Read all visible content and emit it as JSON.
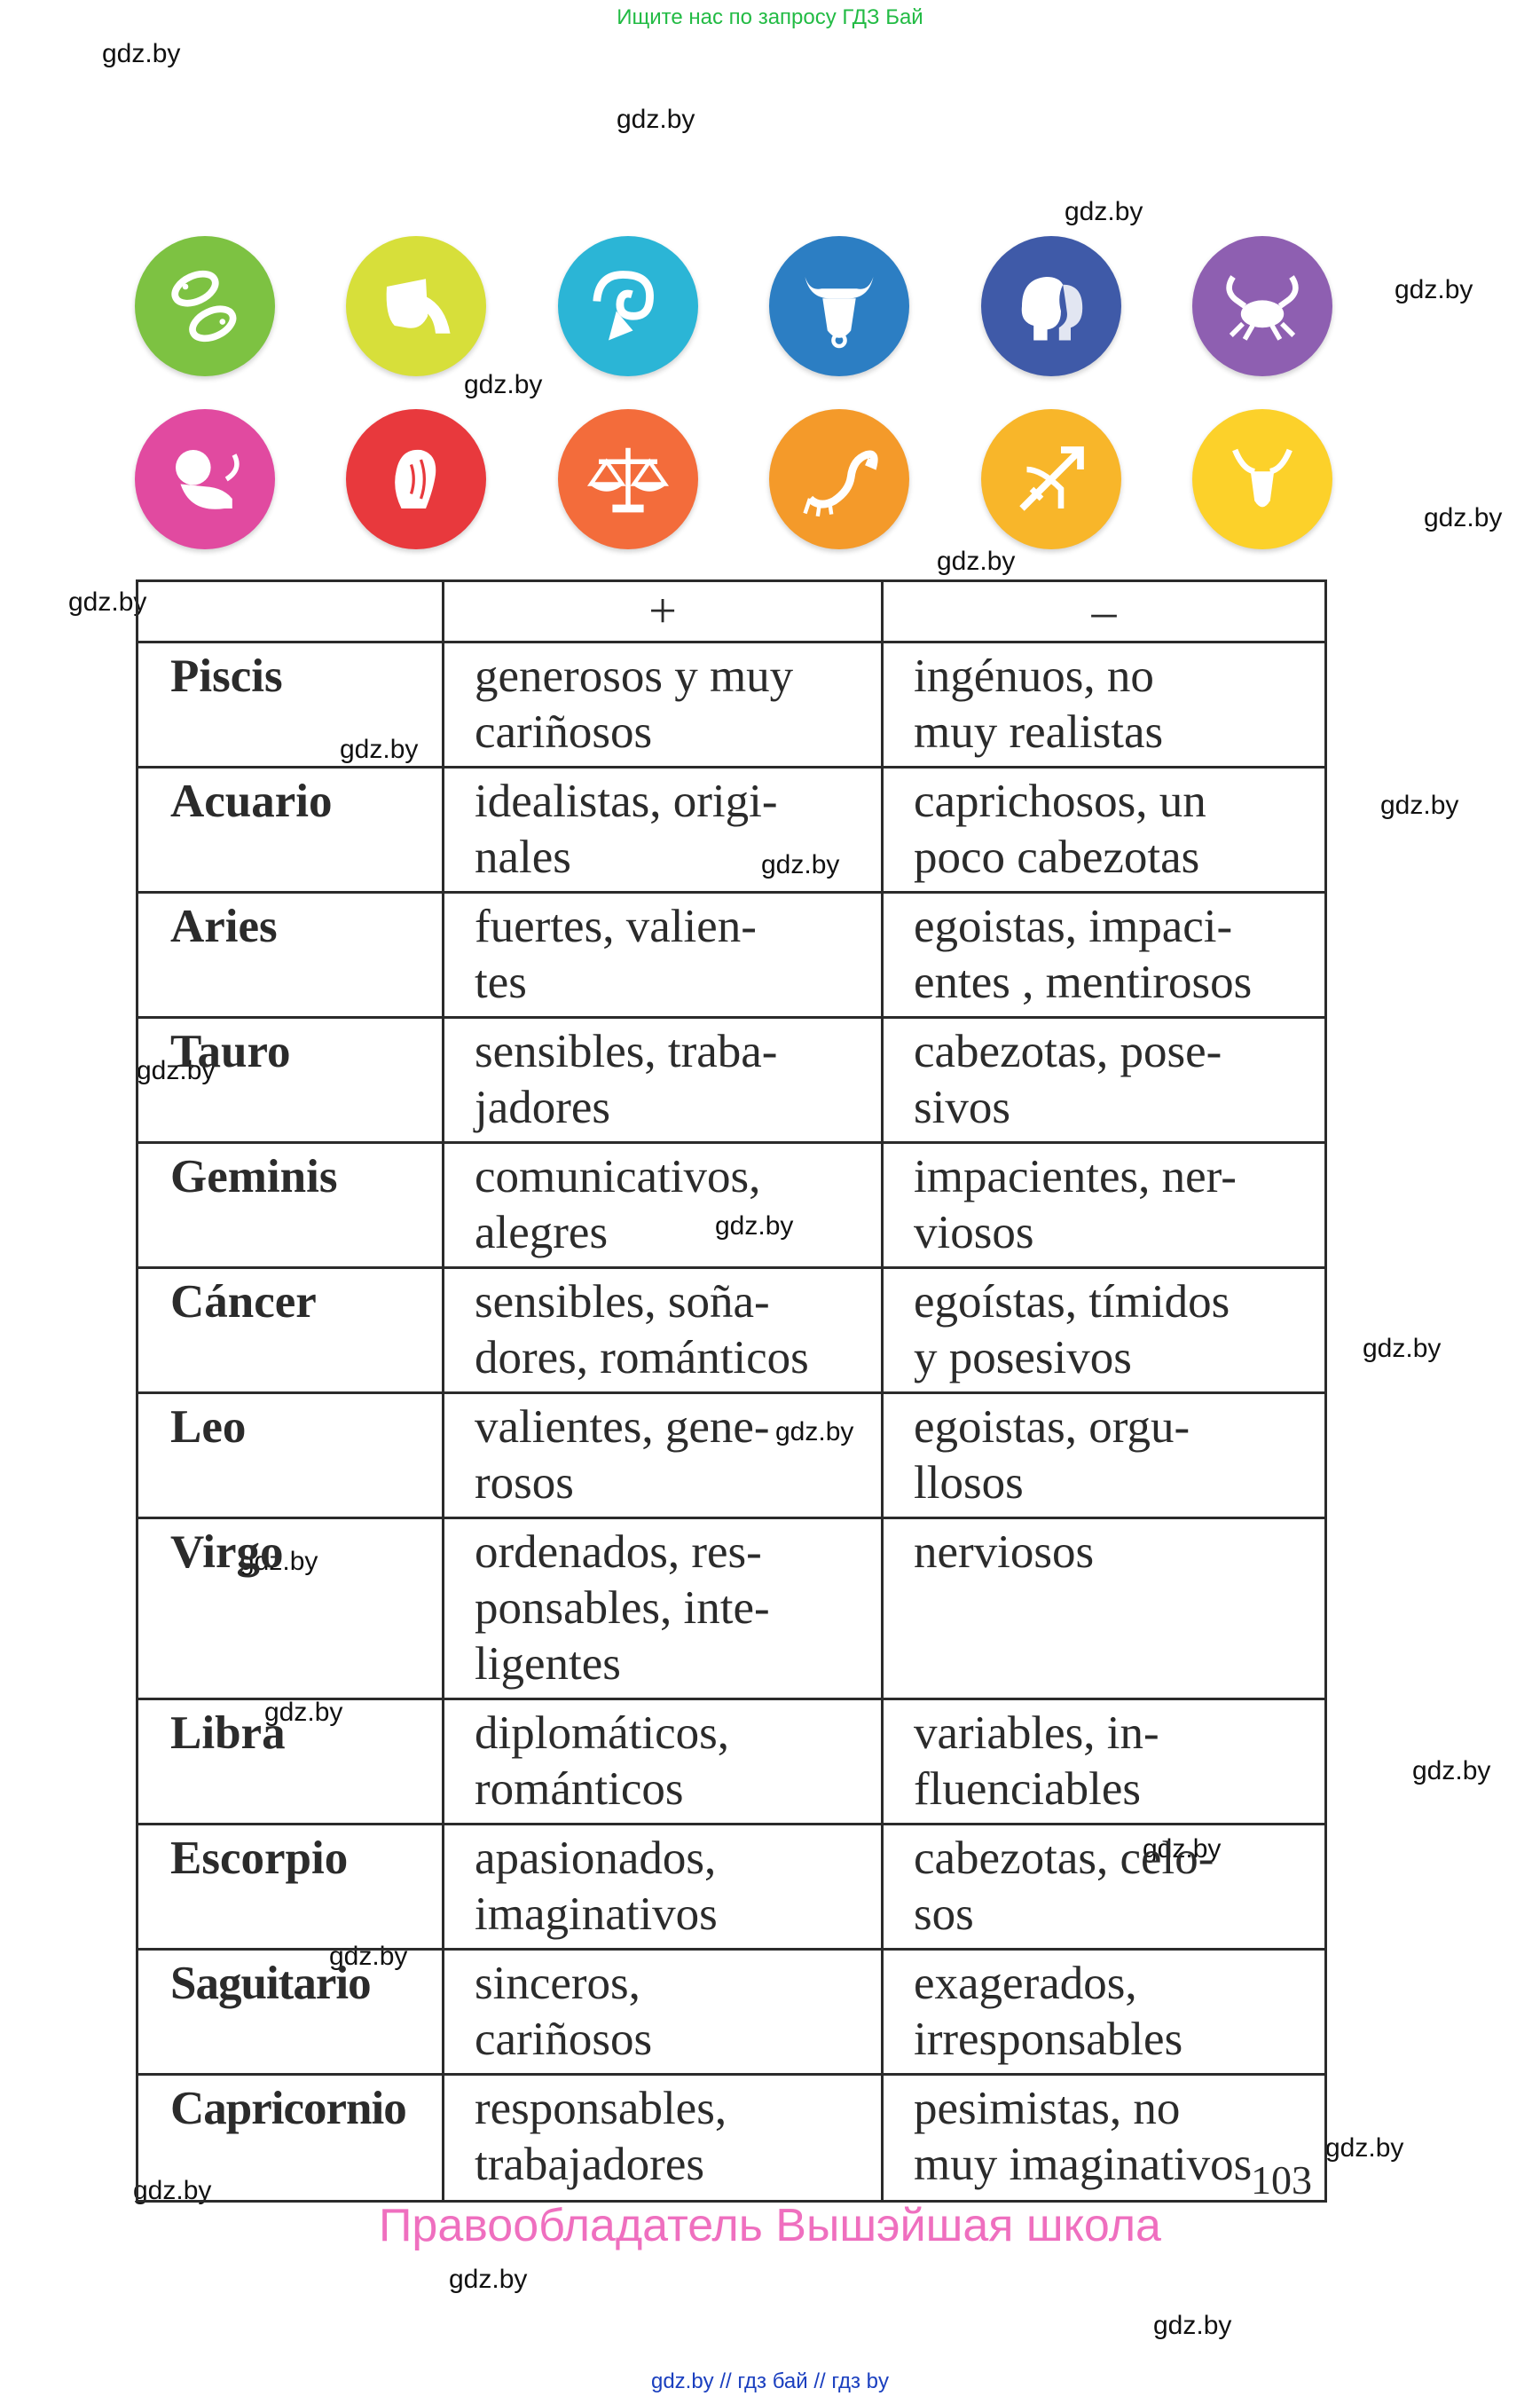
{
  "top_banner": "Ищите нас по запросу ГДЗ Бай",
  "watermarks": [
    "gdz.by",
    "gdz.by",
    "gdz.by",
    "gdz.by",
    "gdz.by",
    "gdz.by",
    "gdz.by",
    "gdz.by",
    "gdz.by",
    "gdz.by",
    "gdz.by",
    "gdz.by",
    "gdz.by",
    "gdz.by",
    "gdz.by",
    "gdz.by",
    "gdz.by",
    "gdz.by",
    "gdz.by",
    "gdz.by",
    "gdz.by",
    "gdz.by",
    "gdz.by"
  ],
  "zodiac_icons": {
    "row1": [
      {
        "icon": "pisces-icon",
        "color": "#7dc242"
      },
      {
        "icon": "aquarius-icon",
        "color": "#d7df3a"
      },
      {
        "icon": "aries-icon",
        "color": "#2bb5d6"
      },
      {
        "icon": "taurus-icon",
        "color": "#2c7ec3"
      },
      {
        "icon": "gemini-icon",
        "color": "#3f5aa8"
      },
      {
        "icon": "cancer-icon",
        "color": "#8e5fb1"
      }
    ],
    "row2": [
      {
        "icon": "leo-icon",
        "color": "#e14aa0"
      },
      {
        "icon": "virgo-icon",
        "color": "#e8393d"
      },
      {
        "icon": "libra-icon",
        "color": "#f36c3b"
      },
      {
        "icon": "scorpio-icon",
        "color": "#f49a2a"
      },
      {
        "icon": "sagittarius-icon",
        "color": "#f8b62a"
      },
      {
        "icon": "capricorn-icon",
        "color": "#fcd12a"
      }
    ]
  },
  "table": {
    "headers": [
      "",
      "+",
      "–"
    ],
    "rows": [
      {
        "sign": "Piscis",
        "plus": "generosos y muy cariñosos",
        "minus": "ingénuos, no muy realistas"
      },
      {
        "sign": "Acuario",
        "plus": "idealistas, origi-nales",
        "minus": "caprichosos, un poco cabezotas"
      },
      {
        "sign": "Aries",
        "plus": "fuertes, valien-tes",
        "minus": "egoistas, impaci-entes , mentirosos"
      },
      {
        "sign": "Tauro",
        "plus": "sensibles, traba-jadores",
        "minus": "cabezotas, pose-sivos"
      },
      {
        "sign": "Geminis",
        "plus": "comunicativos, alegres",
        "minus": "impacientes, ner-viosos"
      },
      {
        "sign": "Cáncer",
        "plus": "sensibles, soña-dores, románticos",
        "minus": "egoístas, tímidos y posesivos"
      },
      {
        "sign": "Leo",
        "plus": "valientes, gene-rosos",
        "minus": "egoistas, orgu-llosos"
      },
      {
        "sign": "Virgo",
        "plus": "ordenados, res-ponsables, inte-ligentes",
        "minus": "nerviosos"
      },
      {
        "sign": "Libra",
        "plus": "diplomáticos, románticos",
        "minus": "variables, in-fluenciables"
      },
      {
        "sign": "Escorpio",
        "plus": "apasionados, imaginativos",
        "minus": "cabezotas, celo-sos"
      },
      {
        "sign": "Saguitario",
        "plus": "sinceros, cariñosos",
        "minus": "exagerados, irresponsables"
      },
      {
        "sign": "Capricornio",
        "plus": "responsables, trabajadores",
        "minus": "pesimistas, no muy imaginativos"
      }
    ]
  },
  "page_number": "103",
  "rights_holder": "Правообладатель Вышэйшая школа",
  "footer_links": "gdz.by  //  гдз бай  //  гдз by"
}
